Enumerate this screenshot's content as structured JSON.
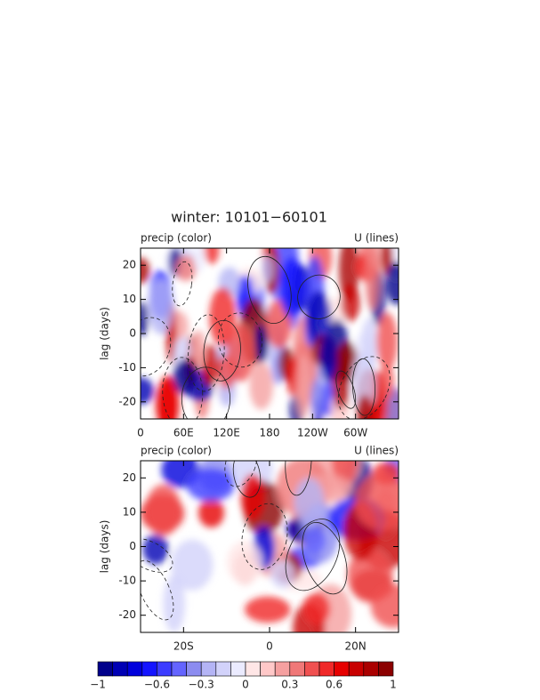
{
  "title": "winter: 10101−60101",
  "chart_data": [
    {
      "type": "contour",
      "subtitle_left": "precip (color)",
      "subtitle_right": "U (lines)",
      "y_label": "lag (days)",
      "xlim": [
        0,
        360
      ],
      "xticks": [
        0,
        {
          "value": 60,
          "label": "60E"
        },
        {
          "value": 120,
          "label": "120E"
        },
        180,
        {
          "value": 240,
          "label": "120W"
        },
        {
          "value": 300,
          "label": "60W"
        }
      ],
      "ylim": [
        -25,
        25
      ],
      "yticks": [
        -20,
        -10,
        0,
        10,
        20
      ]
    },
    {
      "type": "contour",
      "subtitle_left": "precip (color)",
      "subtitle_right": "U (lines)",
      "y_label": "lag (days)",
      "xlim": [
        -30,
        30
      ],
      "xticks": [
        {
          "value": -20,
          "label": "20S"
        },
        0,
        {
          "value": 20,
          "label": "20N"
        }
      ],
      "ylim": [
        -25,
        25
      ],
      "yticks": [
        -20,
        -10,
        0,
        10,
        20
      ]
    }
  ],
  "colorbar": {
    "lim": [
      -1,
      1
    ],
    "ticks": [
      {
        "value": -1,
        "label": "−1"
      },
      {
        "value": -0.6,
        "label": "−0.6"
      },
      {
        "value": -0.3,
        "label": "−0.3"
      },
      0,
      0.3,
      0.6,
      1
    ],
    "colors": [
      "#00008b",
      "#0000b4",
      "#0000dc",
      "#1414ff",
      "#3c3cff",
      "#6464ff",
      "#8c8cf0",
      "#b4b4f5",
      "#d2d2fa",
      "#ebebff",
      "#ffe6e6",
      "#ffc8c8",
      "#f5a0a0",
      "#f07878",
      "#f05050",
      "#f02828",
      "#e60000",
      "#c80000",
      "#aa0000",
      "#8b0000"
    ]
  }
}
